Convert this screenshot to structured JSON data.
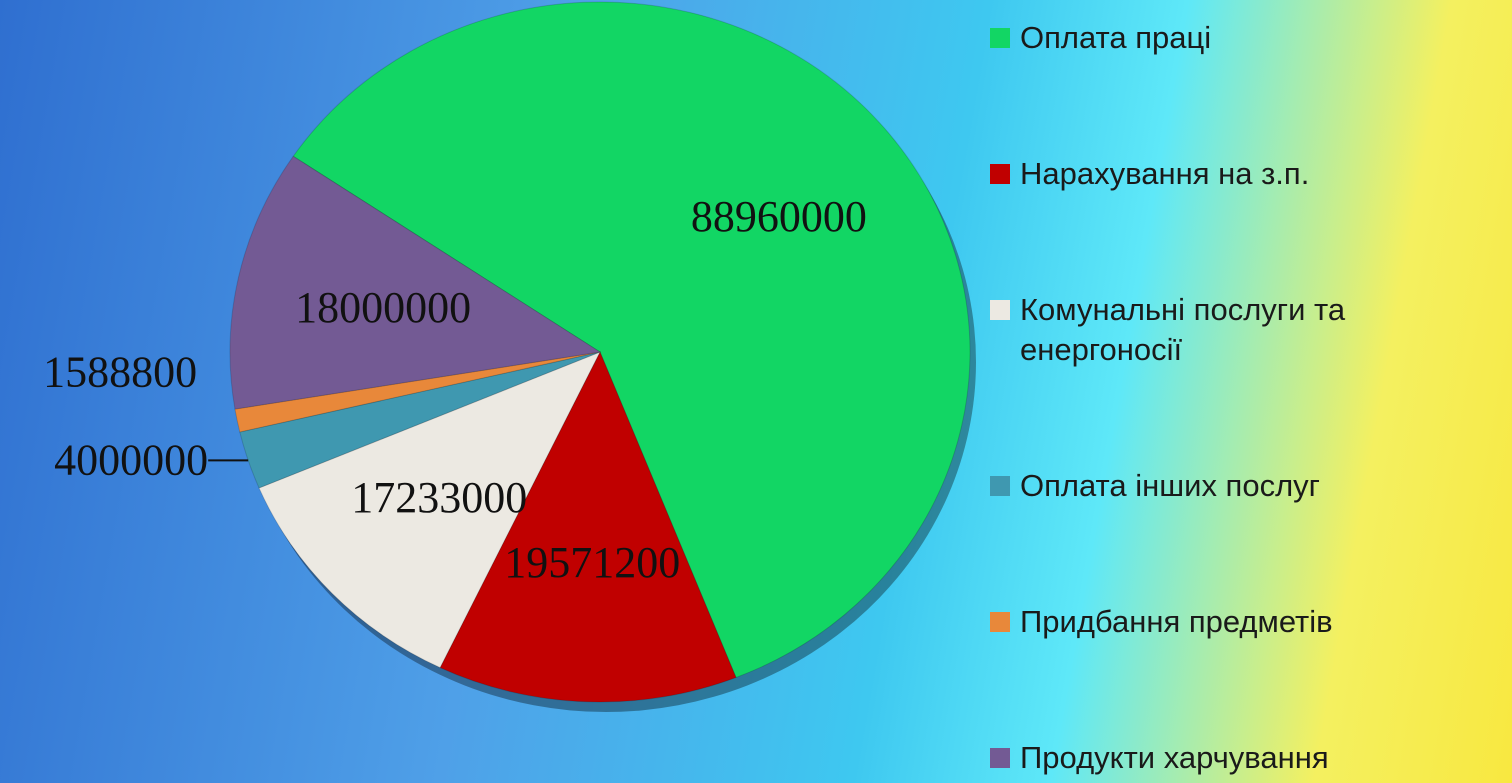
{
  "chart_data": {
    "type": "pie",
    "categories": [
      "Оплата праці",
      "Нарахування на з.п.",
      "Комунальні послуги та енергоносії",
      "Оплата інших послуг",
      "Придбання предметів",
      "Продукти харчування"
    ],
    "values": [
      88960000,
      19571200,
      17233000,
      4000000,
      1588800,
      18000000
    ],
    "colors": [
      "#12d664",
      "#c00000",
      "#ece9e2",
      "#3f98b0",
      "#e8883a",
      "#735a94"
    ],
    "legend": "right"
  }
}
